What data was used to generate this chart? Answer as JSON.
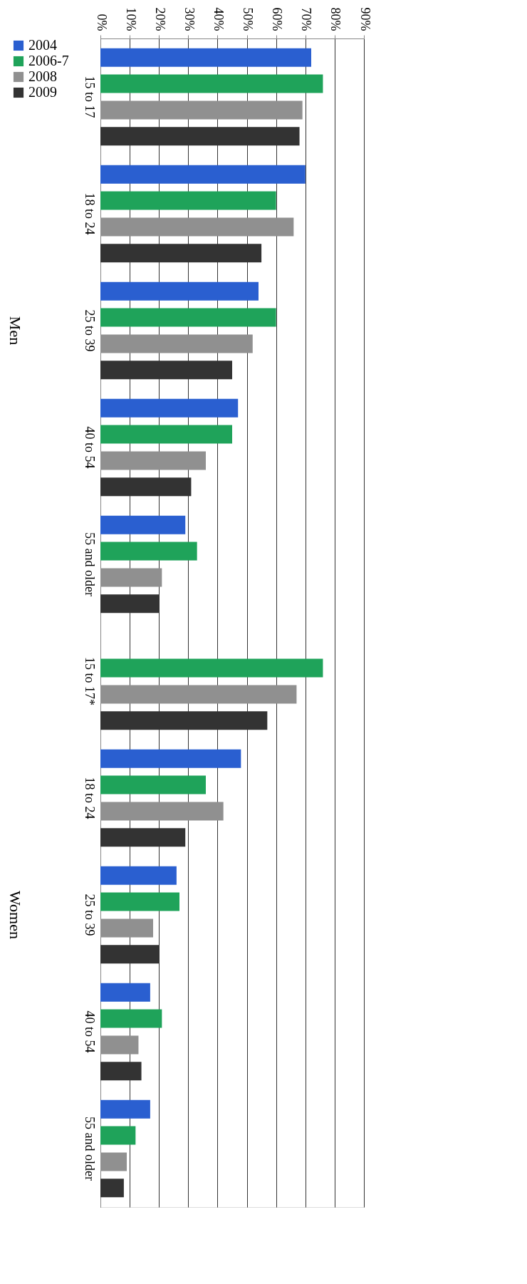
{
  "chart_data": {
    "type": "bar",
    "orientation": "horizontal",
    "categories": [
      "15 to 17",
      "18 to 24",
      "25 to 39",
      "40 to 54",
      "55 and older",
      "15 to 17*",
      "18 to 24",
      "25 to 39",
      "40 to 54",
      "55 and older"
    ],
    "series": [
      {
        "name": "2004",
        "color": "#2a5fd0",
        "values": [
          72,
          70,
          54,
          47,
          29,
          null,
          48,
          26,
          17,
          17
        ]
      },
      {
        "name": "2006-7",
        "color": "#1fa35a",
        "values": [
          76,
          60,
          60,
          45,
          33,
          76,
          36,
          27,
          21,
          12
        ]
      },
      {
        "name": "2008",
        "color": "#909090",
        "values": [
          69,
          66,
          52,
          36,
          21,
          67,
          42,
          18,
          13,
          9
        ]
      },
      {
        "name": "2009",
        "color": "#333333",
        "values": [
          68,
          55,
          45,
          31,
          20,
          57,
          29,
          20,
          14,
          8
        ]
      }
    ],
    "xlim": [
      0,
      90
    ],
    "xticks": [
      {
        "value": 0,
        "label": "0%"
      },
      {
        "value": 10,
        "label": "10%"
      },
      {
        "value": 20,
        "label": "20%"
      },
      {
        "value": 30,
        "label": "30%"
      },
      {
        "value": 40,
        "label": "40%"
      },
      {
        "value": 50,
        "label": "50%"
      },
      {
        "value": 60,
        "label": "60%"
      },
      {
        "value": 70,
        "label": "70%"
      },
      {
        "value": 80,
        "label": "80%"
      },
      {
        "value": 90,
        "label": "90%"
      }
    ],
    "annotations": [
      "Men",
      "Women"
    ],
    "grid": "x",
    "legend": "left"
  }
}
